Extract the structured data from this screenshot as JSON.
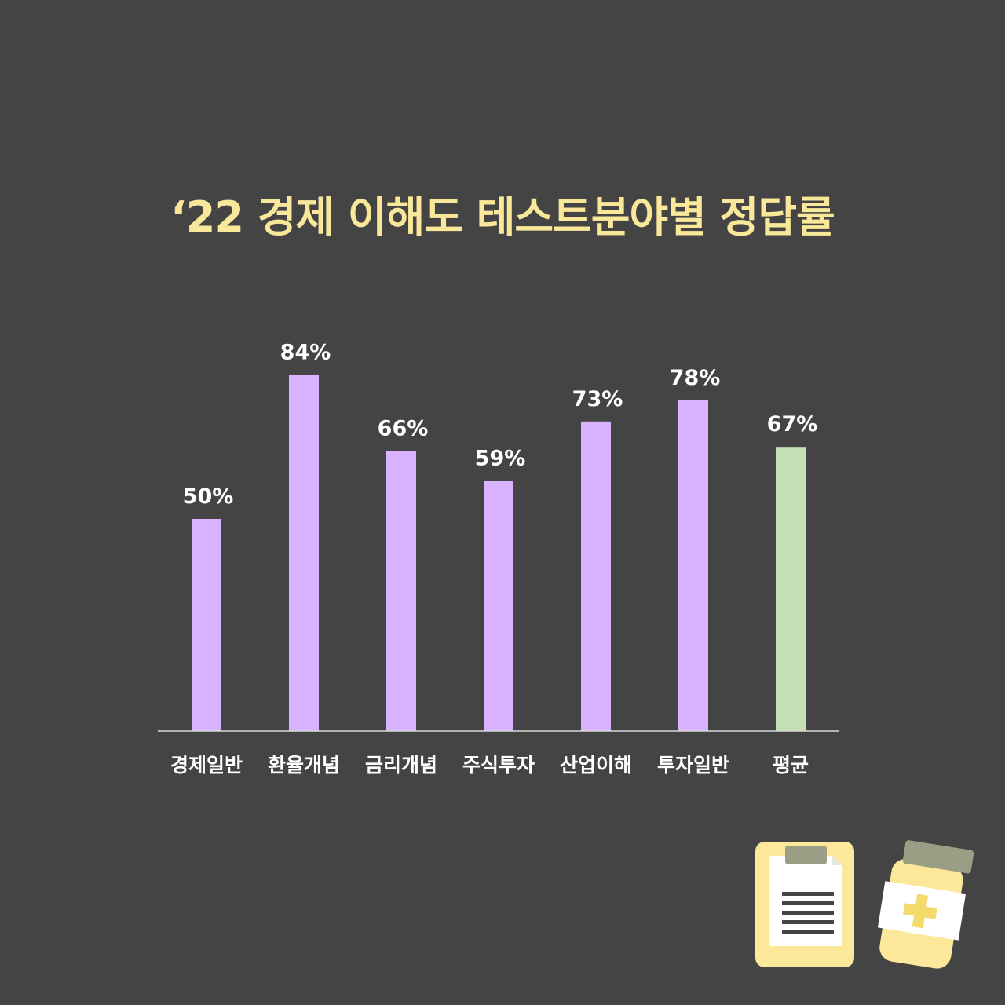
{
  "title": "‘22 경제 이해도 테스트분야별 정답률",
  "chart_data": {
    "type": "bar",
    "title": "‘22 경제 이해도 테스트분야별 정답률",
    "categories": [
      "경제일반",
      "환율개념",
      "금리개념",
      "주식투자",
      "산업이해",
      "투자일반",
      "평균"
    ],
    "values": [
      50,
      84,
      66,
      59,
      73,
      78,
      67
    ],
    "value_labels": [
      "50%",
      "84%",
      "66%",
      "59%",
      "73%",
      "78%",
      "67%"
    ],
    "unit": "%",
    "ylim": [
      0,
      100
    ],
    "grid": false,
    "legend": "none",
    "colors": {
      "bar": "#d9b3ff",
      "highlight_bar": "#c5e0b4",
      "highlight_index": 6,
      "axis": "#d9d9d9",
      "label": "#ffffff",
      "background": "#444444",
      "title": "#f9e79a"
    }
  },
  "icons": [
    {
      "name": "clipboard-icon"
    },
    {
      "name": "medicine-bottle-icon"
    }
  ]
}
